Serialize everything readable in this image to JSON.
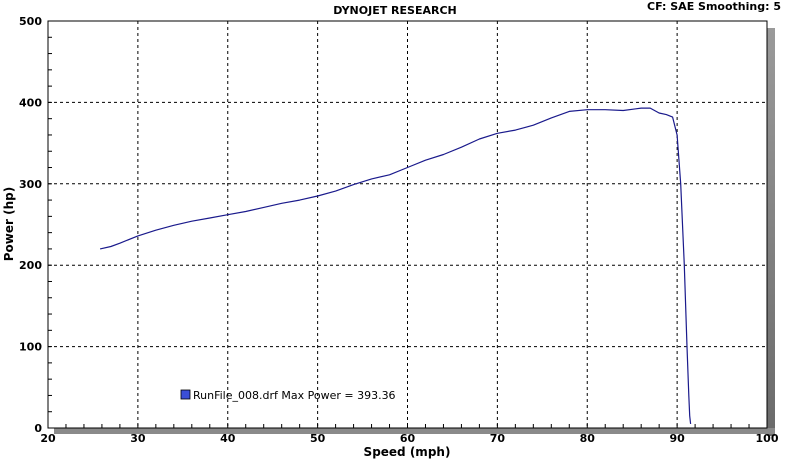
{
  "header": {
    "title": "DYNOJET RESEARCH",
    "info": "CF: SAE  Smoothing: 5"
  },
  "colors": {
    "line": "#1a1a8c",
    "grid": "#000000",
    "plot_bg": "#ffffff",
    "legend_swatch": "#3b4fd8"
  },
  "chart_data": {
    "type": "line",
    "title": "DYNOJET RESEARCH",
    "xlabel": "Speed (mph)",
    "ylabel": "Power (hp)",
    "xlim": [
      20,
      100
    ],
    "ylim": [
      0,
      500
    ],
    "xticks": [
      20,
      30,
      40,
      50,
      60,
      70,
      80,
      90,
      100
    ],
    "yticks": [
      0,
      100,
      200,
      300,
      400,
      500
    ],
    "grid": true,
    "legend_position": "bottom-left",
    "series": [
      {
        "name": "RunFile_008.drf Max Power = 393.36",
        "x": [
          25.8,
          27,
          28,
          30,
          32,
          34,
          36,
          38,
          40,
          42,
          44,
          46,
          48,
          50,
          52,
          54,
          56,
          58,
          60,
          62,
          64,
          66,
          68,
          70,
          72,
          74,
          76,
          78,
          80,
          82,
          84,
          86,
          87,
          88,
          88.8,
          89.5,
          90,
          90.4,
          90.8,
          91.1,
          91.3,
          91.4,
          91.5
        ],
        "y": [
          220,
          223,
          227,
          236,
          243,
          249,
          254,
          258,
          262,
          266,
          271,
          276,
          280,
          285,
          291,
          299,
          306,
          311,
          320,
          329,
          336,
          345,
          355,
          362,
          366,
          372,
          381,
          389,
          391,
          391,
          390,
          393,
          393,
          387,
          385,
          382,
          360,
          300,
          200,
          100,
          40,
          15,
          5
        ]
      }
    ]
  }
}
